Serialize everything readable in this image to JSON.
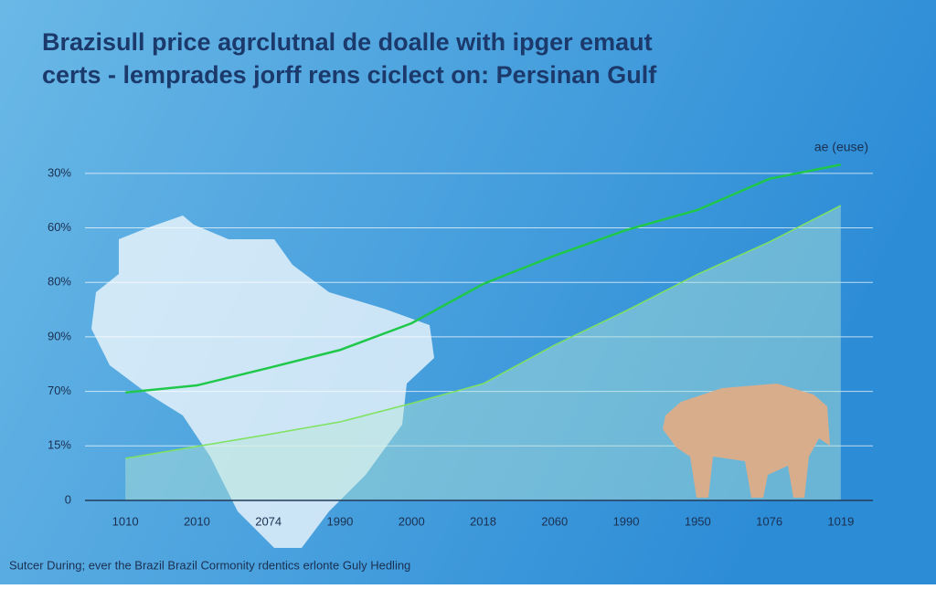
{
  "chart_data": {
    "type": "line",
    "title": [
      "Brazisull price agrclutnal de doalle with ipger emaut",
      "certs - lemprades jorff rens ciclect on: Persinan Gulf"
    ],
    "annotation": "ae (euse)",
    "footer": "Sutcer During; ever the Brazil Brazil Cormonity rdentics erlonte Guly Hedling",
    "categories": [
      "1010",
      "2010",
      "2074",
      "1990",
      "2000",
      "2018",
      "2060",
      "1990",
      "1950",
      "1076",
      "1019"
    ],
    "series": [
      {
        "type": "line",
        "color": "#1fc84a",
        "values": [
          1.98,
          2.11,
          2.43,
          2.76,
          3.25,
          3.97,
          4.49,
          4.96,
          5.33,
          5.9,
          6.16
        ]
      },
      {
        "type": "area",
        "color": "#7ee25e",
        "values": [
          0.77,
          0.99,
          1.21,
          1.44,
          1.78,
          2.14,
          2.85,
          3.48,
          4.15,
          4.74,
          5.41
        ]
      }
    ],
    "ylim": [
      0,
      6.5
    ],
    "yticks": [
      0,
      {
        "value": 1,
        "label": "15%"
      },
      {
        "value": 2,
        "label": "70%"
      },
      {
        "value": 3,
        "label": "90%"
      },
      {
        "value": 4,
        "label": "80%"
      },
      {
        "value": 5,
        "label": "60%"
      },
      {
        "value": 6,
        "label": "30%"
      }
    ],
    "grid": true
  }
}
